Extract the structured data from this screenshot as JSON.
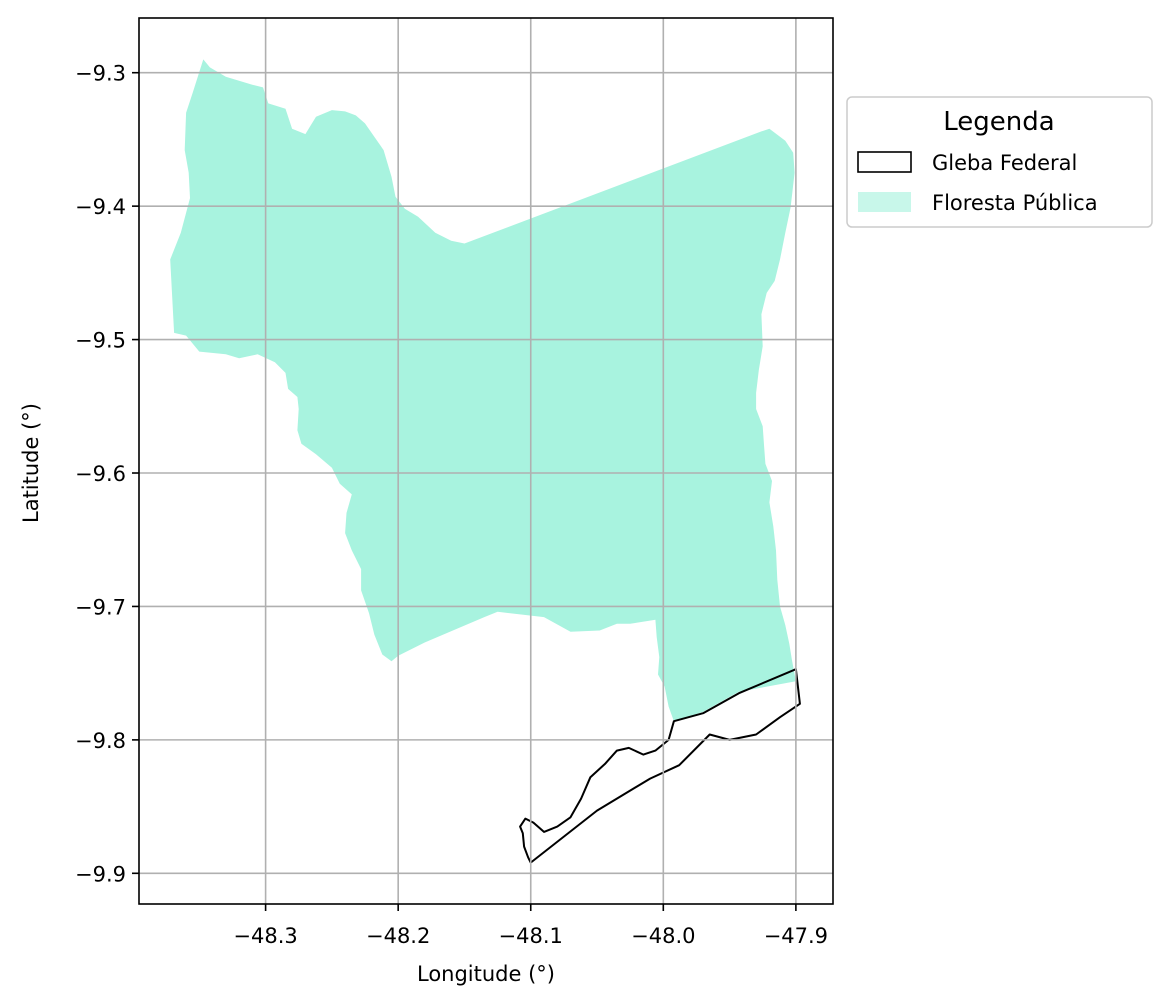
{
  "chart_data": {
    "type": "map",
    "xlabel": "Longitude (°)",
    "ylabel": "Latitude (°)",
    "xlim": [
      -48.3955,
      -47.872
    ],
    "ylim": [
      -9.923,
      -9.259
    ],
    "xticks": [
      -48.3,
      -48.2,
      -48.1,
      -48.0,
      -47.9
    ],
    "yticks": [
      -9.3,
      -9.4,
      -9.5,
      -9.6,
      -9.7,
      -9.8,
      -9.9
    ],
    "xtick_labels": [
      "−48.3",
      "−48.2",
      "−48.1",
      "−48.0",
      "−47.9"
    ],
    "ytick_labels": [
      "−9.3",
      "−9.4",
      "−9.5",
      "−9.6",
      "−9.7",
      "−9.8",
      "−9.9"
    ],
    "grid": true,
    "legend": {
      "title": "Legenda",
      "placement": "outside-right-top",
      "entries": [
        {
          "label": "Gleba Federal",
          "style": "outline",
          "edge_color": "#000000"
        },
        {
          "label": "Floresta Pública",
          "style": "filled",
          "color": "#a8f3df"
        }
      ]
    },
    "layers": [
      {
        "name": "Floresta Pública",
        "fill": "#a8f3df",
        "coordinates": [
          [
            -48.347,
            -9.29
          ],
          [
            -48.342,
            -9.296
          ],
          [
            -48.33,
            -9.303
          ],
          [
            -48.31,
            -9.309
          ],
          [
            -48.302,
            -9.311
          ],
          [
            -48.298,
            -9.323
          ],
          [
            -48.285,
            -9.327
          ],
          [
            -48.28,
            -9.342
          ],
          [
            -48.27,
            -9.346
          ],
          [
            -48.262,
            -9.333
          ],
          [
            -48.25,
            -9.328
          ],
          [
            -48.24,
            -9.329
          ],
          [
            -48.232,
            -9.332
          ],
          [
            -48.225,
            -9.338
          ],
          [
            -48.218,
            -9.348
          ],
          [
            -48.211,
            -9.358
          ],
          [
            -48.205,
            -9.378
          ],
          [
            -48.202,
            -9.393
          ],
          [
            -48.195,
            -9.402
          ],
          [
            -48.185,
            -9.408
          ],
          [
            -48.172,
            -9.42
          ],
          [
            -48.16,
            -9.426
          ],
          [
            -48.15,
            -9.428
          ],
          [
            -47.926,
            -9.344
          ],
          [
            -47.92,
            -9.342
          ],
          [
            -47.908,
            -9.351
          ],
          [
            -47.902,
            -9.36
          ],
          [
            -47.901,
            -9.375
          ],
          [
            -47.904,
            -9.401
          ],
          [
            -47.908,
            -9.42
          ],
          [
            -47.912,
            -9.44
          ],
          [
            -47.916,
            -9.456
          ],
          [
            -47.922,
            -9.465
          ],
          [
            -47.926,
            -9.481
          ],
          [
            -47.925,
            -9.505
          ],
          [
            -47.928,
            -9.523
          ],
          [
            -47.93,
            -9.54
          ],
          [
            -47.93,
            -9.552
          ],
          [
            -47.925,
            -9.565
          ],
          [
            -47.924,
            -9.58
          ],
          [
            -47.923,
            -9.593
          ],
          [
            -47.918,
            -9.606
          ],
          [
            -47.92,
            -9.622
          ],
          [
            -47.917,
            -9.64
          ],
          [
            -47.915,
            -9.658
          ],
          [
            -47.914,
            -9.68
          ],
          [
            -47.912,
            -9.7
          ],
          [
            -47.908,
            -9.714
          ],
          [
            -47.905,
            -9.728
          ],
          [
            -47.903,
            -9.74
          ],
          [
            -47.9,
            -9.756
          ],
          [
            -47.943,
            -9.764
          ],
          [
            -47.97,
            -9.779
          ],
          [
            -47.992,
            -9.786
          ],
          [
            -47.996,
            -9.775
          ],
          [
            -47.999,
            -9.76
          ],
          [
            -48.004,
            -9.751
          ],
          [
            -48.003,
            -9.738
          ],
          [
            -48.005,
            -9.723
          ],
          [
            -48.006,
            -9.71
          ],
          [
            -48.025,
            -9.713
          ],
          [
            -48.035,
            -9.713
          ],
          [
            -48.048,
            -9.718
          ],
          [
            -48.07,
            -9.719
          ],
          [
            -48.09,
            -9.708
          ],
          [
            -48.125,
            -9.704
          ],
          [
            -48.135,
            -9.708
          ],
          [
            -48.18,
            -9.727
          ],
          [
            -48.2,
            -9.737
          ],
          [
            -48.205,
            -9.741
          ],
          [
            -48.212,
            -9.736
          ],
          [
            -48.218,
            -9.721
          ],
          [
            -48.222,
            -9.705
          ],
          [
            -48.228,
            -9.688
          ],
          [
            -48.228,
            -9.672
          ],
          [
            -48.235,
            -9.658
          ],
          [
            -48.24,
            -9.645
          ],
          [
            -48.239,
            -9.63
          ],
          [
            -48.235,
            -9.616
          ],
          [
            -48.244,
            -9.608
          ],
          [
            -48.25,
            -9.596
          ],
          [
            -48.262,
            -9.586
          ],
          [
            -48.273,
            -9.578
          ],
          [
            -48.276,
            -9.568
          ],
          [
            -48.275,
            -9.552
          ],
          [
            -48.276,
            -9.543
          ],
          [
            -48.283,
            -9.537
          ],
          [
            -48.285,
            -9.525
          ],
          [
            -48.293,
            -9.517
          ],
          [
            -48.306,
            -9.511
          ],
          [
            -48.32,
            -9.514
          ],
          [
            -48.33,
            -9.511
          ],
          [
            -48.35,
            -9.509
          ],
          [
            -48.36,
            -9.497
          ],
          [
            -48.369,
            -9.495
          ],
          [
            -48.372,
            -9.44
          ],
          [
            -48.364,
            -9.42
          ],
          [
            -48.357,
            -9.394
          ],
          [
            -48.358,
            -9.375
          ],
          [
            -48.361,
            -9.358
          ],
          [
            -48.36,
            -9.33
          ],
          [
            -48.355,
            -9.315
          ]
        ]
      },
      {
        "name": "Gleba Federal",
        "stroke": "#000000",
        "fill": "none",
        "coordinates": [
          [
            -48.1,
            -9.892
          ],
          [
            -48.102,
            -9.888
          ],
          [
            -48.105,
            -9.88
          ],
          [
            -48.106,
            -9.87
          ],
          [
            -48.108,
            -9.865
          ],
          [
            -48.104,
            -9.859
          ],
          [
            -48.098,
            -9.862
          ],
          [
            -48.09,
            -9.869
          ],
          [
            -48.08,
            -9.865
          ],
          [
            -48.07,
            -9.858
          ],
          [
            -48.062,
            -9.844
          ],
          [
            -48.055,
            -9.828
          ],
          [
            -48.044,
            -9.818
          ],
          [
            -48.035,
            -9.808
          ],
          [
            -48.026,
            -9.806
          ],
          [
            -48.015,
            -9.811
          ],
          [
            -48.006,
            -9.808
          ],
          [
            -47.996,
            -9.8
          ],
          [
            -47.992,
            -9.786
          ],
          [
            -47.97,
            -9.78
          ],
          [
            -47.943,
            -9.765
          ],
          [
            -47.9,
            -9.747
          ],
          [
            -47.897,
            -9.773
          ],
          [
            -47.912,
            -9.783
          ],
          [
            -47.93,
            -9.796
          ],
          [
            -47.95,
            -9.8
          ],
          [
            -47.965,
            -9.796
          ],
          [
            -47.988,
            -9.819
          ],
          [
            -48.01,
            -9.829
          ],
          [
            -48.05,
            -9.853
          ],
          [
            -48.1,
            -9.892
          ]
        ]
      }
    ]
  }
}
